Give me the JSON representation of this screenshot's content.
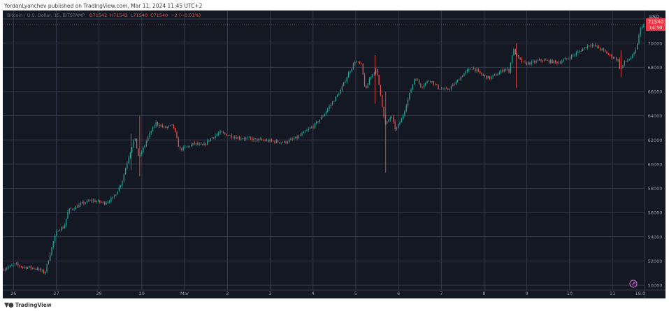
{
  "caption": "YordanLyanchev published on TradingView.com, Mar 11, 2024 11:45 UTC+2",
  "branding": "TradingView",
  "chart_data": {
    "type": "candlestick",
    "title": "Bitcoin / U.S. Dollar, 15, BITSTAMP",
    "ohlc_label": {
      "o": "O71542",
      "h": "H71542",
      "l": "L71540",
      "c": "C71540",
      "change": "−2 (−0.01%)"
    },
    "currency": "USD",
    "last_price": 71540,
    "last_price_label": "71540",
    "countdown": "14:50",
    "y_range": [
      49600,
      72700
    ],
    "y_ticks": [
      50000,
      52000,
      54000,
      56000,
      58000,
      60000,
      62000,
      64000,
      66000,
      68000,
      70000,
      72000
    ],
    "x_range": [
      0,
      15
    ],
    "x_ticks": [
      {
        "pos": 0.25,
        "label": "26"
      },
      {
        "pos": 1.25,
        "label": "27"
      },
      {
        "pos": 2.25,
        "label": "28"
      },
      {
        "pos": 3.25,
        "label": "29"
      },
      {
        "pos": 4.25,
        "label": "Mar"
      },
      {
        "pos": 5.25,
        "label": "2"
      },
      {
        "pos": 6.25,
        "label": "3"
      },
      {
        "pos": 7.25,
        "label": "4"
      },
      {
        "pos": 8.25,
        "label": "5"
      },
      {
        "pos": 9.25,
        "label": "6"
      },
      {
        "pos": 10.25,
        "label": "7"
      },
      {
        "pos": 11.25,
        "label": "8"
      },
      {
        "pos": 12.25,
        "label": "9"
      },
      {
        "pos": 13.25,
        "label": "10"
      },
      {
        "pos": 14.25,
        "label": "11"
      },
      {
        "pos": 14.9,
        "label": "18:0"
      }
    ],
    "price_path": [
      [
        0.0,
        51300
      ],
      [
        0.3,
        51700
      ],
      [
        0.5,
        51500
      ],
      [
        0.8,
        51400
      ],
      [
        1.0,
        51000
      ],
      [
        1.1,
        52300
      ],
      [
        1.2,
        53600
      ],
      [
        1.3,
        54600
      ],
      [
        1.45,
        54800
      ],
      [
        1.55,
        56200
      ],
      [
        1.7,
        56400
      ],
      [
        1.9,
        56800
      ],
      [
        2.1,
        57000
      ],
      [
        2.4,
        56800
      ],
      [
        2.6,
        57200
      ],
      [
        2.8,
        58500
      ],
      [
        2.95,
        60500
      ],
      [
        3.1,
        62200
      ],
      [
        3.2,
        60500
      ],
      [
        3.3,
        61300
      ],
      [
        3.45,
        62500
      ],
      [
        3.6,
        63400
      ],
      [
        3.8,
        63000
      ],
      [
        4.0,
        63200
      ],
      [
        4.15,
        61200
      ],
      [
        4.3,
        61400
      ],
      [
        4.5,
        61700
      ],
      [
        4.7,
        61500
      ],
      [
        4.9,
        62200
      ],
      [
        5.1,
        62600
      ],
      [
        5.3,
        62400
      ],
      [
        5.5,
        62200
      ],
      [
        5.8,
        62100
      ],
      [
        6.0,
        62000
      ],
      [
        6.3,
        61900
      ],
      [
        6.6,
        61800
      ],
      [
        6.9,
        62200
      ],
      [
        7.1,
        62700
      ],
      [
        7.3,
        63200
      ],
      [
        7.5,
        64000
      ],
      [
        7.7,
        65000
      ],
      [
        7.9,
        66000
      ],
      [
        8.1,
        67500
      ],
      [
        8.25,
        68500
      ],
      [
        8.4,
        68200
      ],
      [
        8.5,
        66000
      ],
      [
        8.6,
        67200
      ],
      [
        8.75,
        67800
      ],
      [
        8.85,
        65800
      ],
      [
        8.95,
        63200
      ],
      [
        9.1,
        64000
      ],
      [
        9.2,
        62800
      ],
      [
        9.35,
        63800
      ],
      [
        9.5,
        65500
      ],
      [
        9.65,
        67200
      ],
      [
        9.8,
        66400
      ],
      [
        10.0,
        67000
      ],
      [
        10.2,
        66300
      ],
      [
        10.4,
        66100
      ],
      [
        10.6,
        66700
      ],
      [
        10.8,
        67500
      ],
      [
        11.0,
        68000
      ],
      [
        11.2,
        67400
      ],
      [
        11.4,
        67100
      ],
      [
        11.6,
        67500
      ],
      [
        11.75,
        67900
      ],
      [
        11.85,
        67700
      ],
      [
        11.95,
        69500
      ],
      [
        12.05,
        68800
      ],
      [
        12.2,
        68300
      ],
      [
        12.4,
        68400
      ],
      [
        12.6,
        68600
      ],
      [
        12.8,
        68500
      ],
      [
        13.0,
        68400
      ],
      [
        13.2,
        68700
      ],
      [
        13.4,
        69100
      ],
      [
        13.6,
        69600
      ],
      [
        13.75,
        69900
      ],
      [
        13.9,
        69700
      ],
      [
        14.05,
        69400
      ],
      [
        14.2,
        69000
      ],
      [
        14.4,
        68600
      ],
      [
        14.45,
        67800
      ],
      [
        14.55,
        68400
      ],
      [
        14.7,
        68800
      ],
      [
        14.8,
        69200
      ],
      [
        14.88,
        70500
      ],
      [
        14.94,
        71400
      ],
      [
        15.0,
        71540
      ]
    ],
    "spikes": [
      {
        "x": 3.2,
        "low": 59000,
        "high": 64000
      },
      {
        "x": 3.0,
        "low": 59500,
        "high": 62500
      },
      {
        "x": 8.7,
        "low": 65000,
        "high": 69000
      },
      {
        "x": 8.95,
        "low": 59300,
        "high": 66000
      },
      {
        "x": 12.0,
        "low": 66300,
        "high": 70000
      },
      {
        "x": 14.45,
        "low": 67200,
        "high": 69400
      }
    ]
  },
  "colors": {
    "panel_bg": "#141823",
    "grid": "#343a4a",
    "axis_text": "#8f95a3",
    "up": "#26a69a",
    "down": "#ef5350",
    "price_tag": "#f23645",
    "caption": "#3b3b3b",
    "watermark": "#c159c6"
  },
  "watermark_icon": "cycle-icon"
}
